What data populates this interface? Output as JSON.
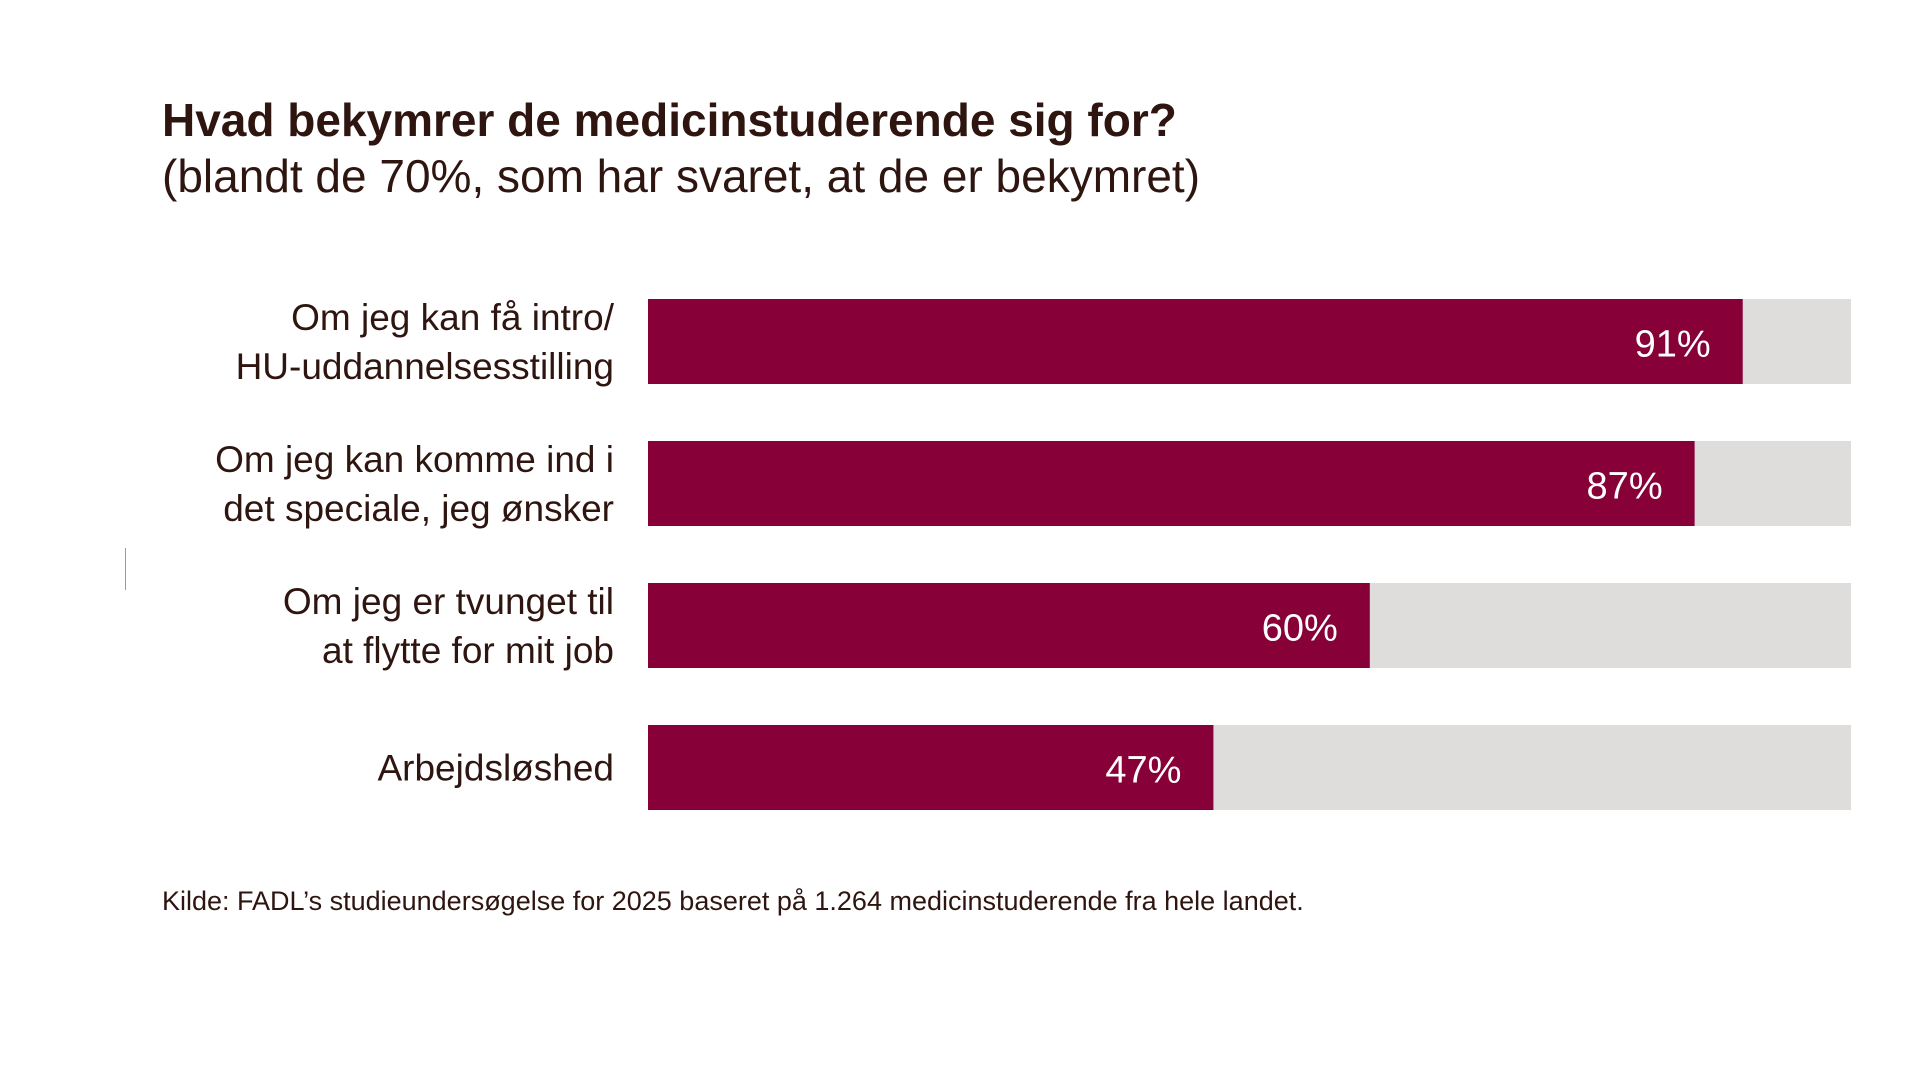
{
  "colors": {
    "bar": "#870037",
    "track": "#dfdddb",
    "text": "#2e1510",
    "value_text": "#ffffff"
  },
  "chart_data": {
    "type": "bar",
    "orientation": "horizontal",
    "title": "Hvad bekymrer de medicinstuderende sig for?",
    "subtitle": "(blandt de 70%, som har svaret, at de er bekymret)",
    "categories": [
      [
        "Om jeg kan få intro/",
        "HU-uddannelsesstilling"
      ],
      [
        "Om jeg kan komme ind i",
        "det speciale, jeg ønsker"
      ],
      [
        "Om jeg er tvunget til",
        "at flytte for mit job"
      ],
      [
        "Arbejdsløshed"
      ]
    ],
    "values": [
      91,
      87,
      60,
      47
    ],
    "value_labels": [
      "91%",
      "87%",
      "60%",
      "47%"
    ],
    "xlim": [
      0,
      100
    ],
    "grid": false,
    "legend": "none",
    "source": "Kilde: FADL’s studieundersøgelse for 2025 baseret på 1.264 medicinstuderende fra hele landet."
  }
}
